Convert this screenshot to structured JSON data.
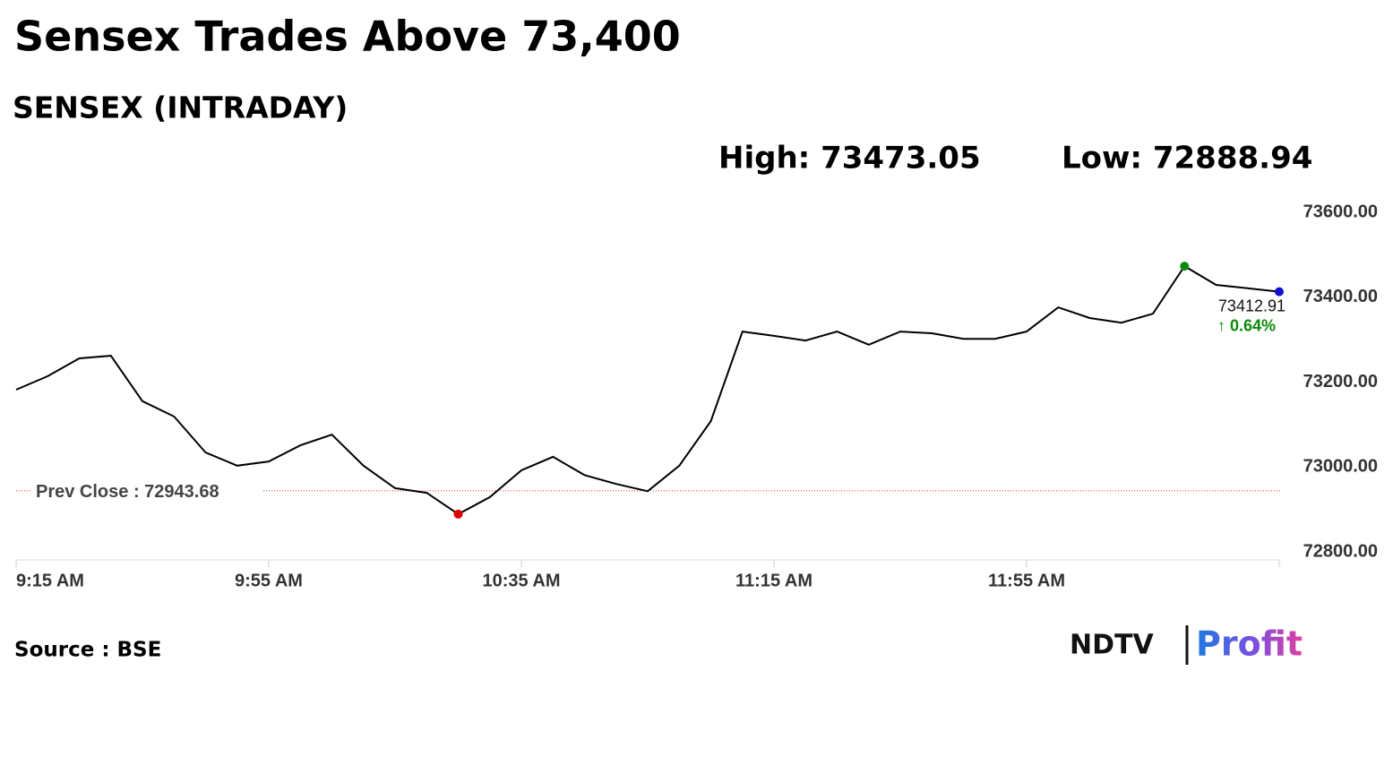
{
  "chart_data": {
    "type": "line",
    "title": "Sensex Trades Above 73,400",
    "subtitle": "SENSEX (INTRADAY)",
    "high": {
      "value": 73473.05,
      "label": "High: 73473.05"
    },
    "low": {
      "value": 72888.94,
      "label": "Low: 72888.94"
    },
    "prev_close": {
      "value": 72943.68,
      "label": "Prev Close : 72943.68"
    },
    "last": {
      "value": 73412.91,
      "label": "73412.91"
    },
    "change": {
      "value": 0.64,
      "label": "↑ 0.64%"
    },
    "categories": [
      "9:15 AM",
      null,
      null,
      null,
      null,
      null,
      null,
      null,
      "9:55 AM",
      null,
      null,
      null,
      null,
      null,
      null,
      null,
      "10:35 AM",
      null,
      null,
      null,
      null,
      null,
      null,
      null,
      "11:15 AM",
      null,
      null,
      null,
      null,
      null,
      null,
      null,
      "11:55 AM",
      null,
      null,
      null,
      null,
      null,
      null,
      null,
      null
    ],
    "values": [
      73182,
      73214,
      73256,
      73262,
      73155,
      73119,
      73034,
      73003,
      73013,
      73051,
      73076,
      73003,
      72950,
      72939,
      72888.94,
      72929,
      72992,
      73024,
      72981,
      72960,
      72943,
      73003,
      73108,
      73319,
      73309,
      73298,
      73319,
      73288,
      73319,
      73315,
      73302,
      73302,
      73319,
      73376,
      73351,
      73340,
      73361,
      73473.05,
      73429,
      73421,
      73412.91
    ],
    "color": "#000000",
    "ylim": [
      72800,
      73600
    ],
    "yticks": [
      {
        "value": 72800,
        "label": "72800.00"
      },
      {
        "value": 73000,
        "label": "73000.00"
      },
      {
        "value": 73200,
        "label": "73200.00"
      },
      {
        "value": 73400,
        "label": "73400.00"
      },
      {
        "value": 73600,
        "label": "73600.00"
      }
    ],
    "source": "Source : BSE",
    "logo": {
      "left": "NDTV",
      "right": "Profit"
    }
  }
}
